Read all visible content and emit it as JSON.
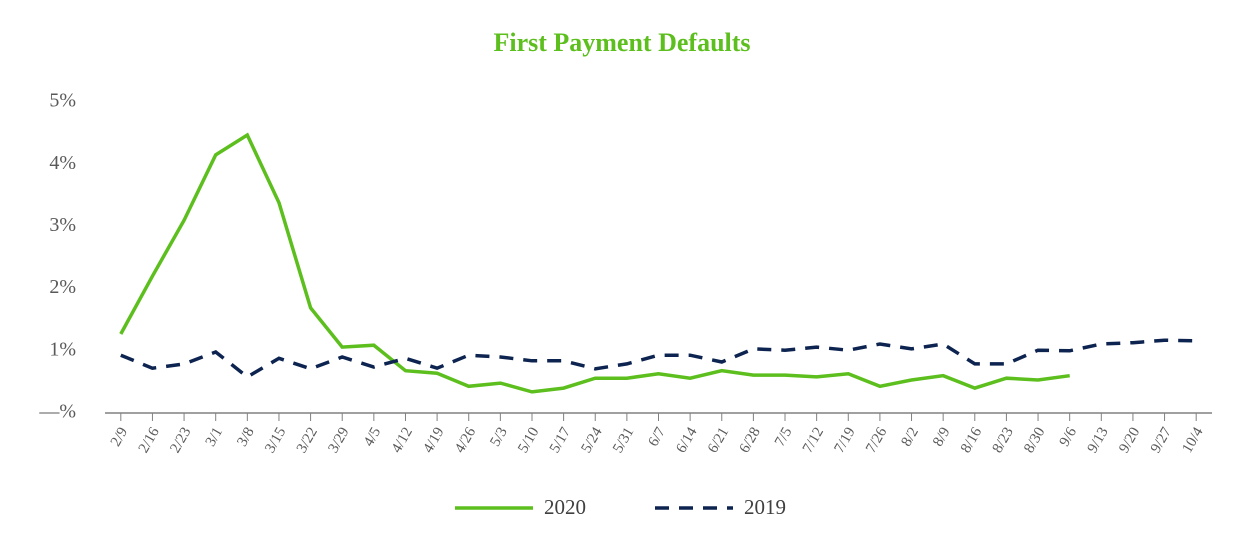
{
  "chart_data": {
    "type": "line",
    "title": "First Payment Defaults",
    "categories": [
      "2/9",
      "2/16",
      "2/23",
      "3/1",
      "3/8",
      "3/15",
      "3/22",
      "3/29",
      "4/5",
      "4/12",
      "4/19",
      "4/26",
      "5/3",
      "5/10",
      "5/17",
      "5/24",
      "5/31",
      "6/7",
      "6/14",
      "6/21",
      "6/28",
      "7/5",
      "7/12",
      "7/19",
      "7/26",
      "8/2",
      "8/9",
      "8/16",
      "8/23",
      "8/30",
      "9/6",
      "9/13",
      "9/20",
      "9/27",
      "10/4"
    ],
    "series": [
      {
        "name": "2020",
        "color": "#5cbf1e",
        "dash": false,
        "values": [
          1.27,
          2.2,
          3.1,
          4.15,
          4.47,
          3.38,
          1.69,
          1.06,
          1.09,
          0.68,
          0.64,
          0.43,
          0.48,
          0.34,
          0.4,
          0.56,
          0.56,
          0.63,
          0.56,
          0.68,
          0.61,
          0.61,
          0.58,
          0.63,
          0.43,
          0.53,
          0.6,
          0.4,
          0.56,
          0.53,
          0.6,
          null,
          null,
          null,
          null
        ]
      },
      {
        "name": "2019",
        "color": "#0d2451",
        "dash": true,
        "values": [
          0.93,
          0.72,
          0.79,
          0.98,
          0.58,
          0.88,
          0.71,
          0.9,
          0.74,
          0.88,
          0.72,
          0.93,
          0.9,
          0.84,
          0.84,
          0.71,
          0.79,
          0.93,
          0.93,
          0.82,
          1.03,
          1.01,
          1.06,
          1.01,
          1.11,
          1.03,
          1.11,
          0.79,
          0.79,
          1.01,
          1.0,
          1.11,
          1.13,
          1.17,
          1.16
        ]
      }
    ],
    "ylim": [
      0,
      5
    ],
    "yticks": [
      {
        "value": 0,
        "label": "—%"
      },
      {
        "value": 1,
        "label": "1%"
      },
      {
        "value": 2,
        "label": "2%"
      },
      {
        "value": 3,
        "label": "3%"
      },
      {
        "value": 4,
        "label": "4%"
      },
      {
        "value": 5,
        "label": "5%"
      }
    ],
    "grid": false,
    "legend": "bottom"
  }
}
